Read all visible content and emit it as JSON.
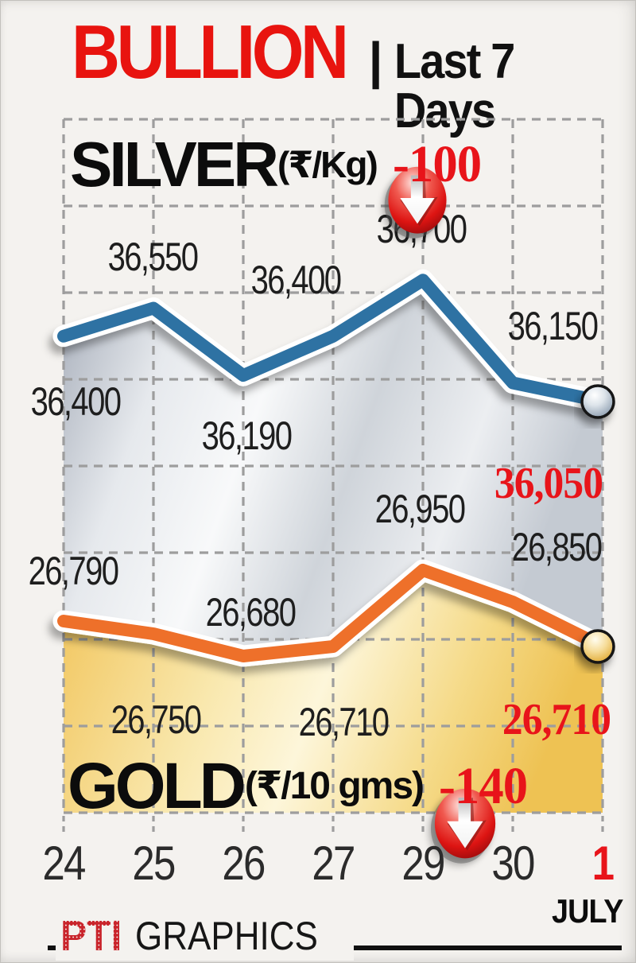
{
  "title": {
    "main": "BULLION",
    "separator": "|",
    "period": "Last 7 Days"
  },
  "chart_data": {
    "type": "line",
    "title": "BULLION | Last 7 Days",
    "x_labels": [
      "24",
      "25",
      "26",
      "27",
      "29",
      "30",
      "1"
    ],
    "x_label_highlight_index": 6,
    "x_axis_month": "JULY",
    "grid": true,
    "series": [
      {
        "name": "SILVER",
        "unit": "(₹/Kg)",
        "change": "-100",
        "line_color": "#2e72a3",
        "values": [
          36400,
          36550,
          36190,
          36400,
          36700,
          36150,
          36050
        ],
        "last_value_highlighted": true
      },
      {
        "name": "GOLD",
        "unit": "(₹/10 gms)",
        "change": "-140",
        "line_color": "#ee6f2a",
        "values": [
          26790,
          26750,
          26680,
          26710,
          26950,
          26850,
          26710
        ],
        "last_value_highlighted": true
      }
    ]
  },
  "footer": {
    "brand": "PTI",
    "brand_text": "GRAPHICS",
    "month_label": "JULY"
  },
  "colors": {
    "accent_red": "#e8141a",
    "silver_line": "#2e72a3",
    "gold_line": "#ee6f2a",
    "grid": "#9d9d9d",
    "text": "#1e1e1e"
  }
}
